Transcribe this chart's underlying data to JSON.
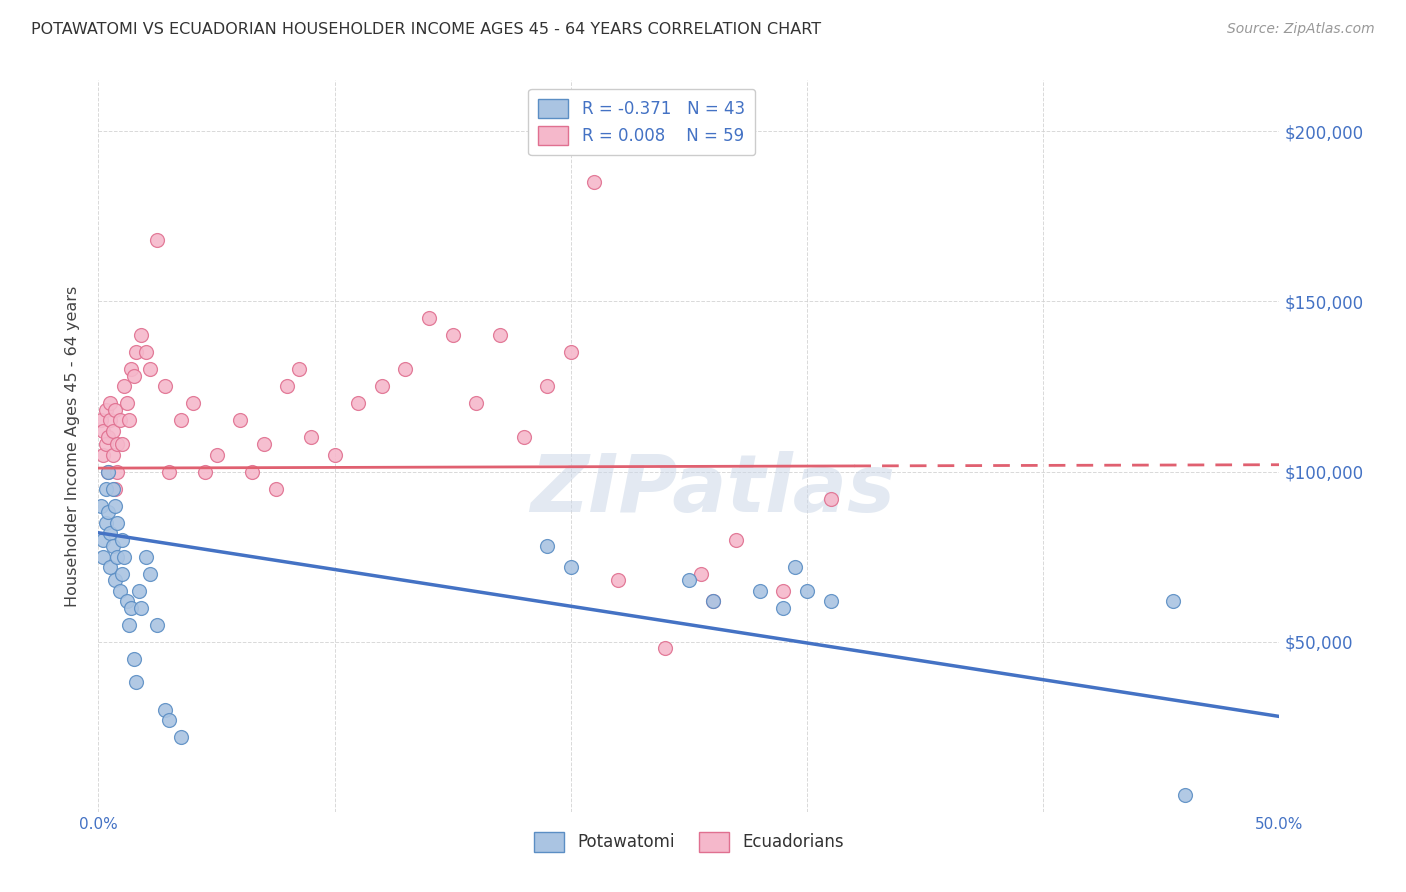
{
  "title": "POTAWATOMI VS ECUADORIAN HOUSEHOLDER INCOME AGES 45 - 64 YEARS CORRELATION CHART",
  "source": "Source: ZipAtlas.com",
  "ylabel": "Householder Income Ages 45 - 64 years",
  "watermark": "ZIPatlas",
  "blue_label": "Potawatomi",
  "pink_label": "Ecuadorians",
  "blue_R": -0.371,
  "blue_N": 43,
  "pink_R": 0.008,
  "pink_N": 59,
  "xmin": 0.0,
  "xmax": 0.5,
  "ymin": 0,
  "ymax": 215000,
  "yticks": [
    0,
    50000,
    100000,
    150000,
    200000
  ],
  "ytick_labels": [
    "",
    "$50,000",
    "$100,000",
    "$150,000",
    "$200,000"
  ],
  "xticks": [
    0.0,
    0.1,
    0.2,
    0.3,
    0.4,
    0.5
  ],
  "xtick_labels": [
    "0.0%",
    "",
    "",
    "",
    "",
    "50.0%"
  ],
  "blue_color": "#aac4e2",
  "blue_edge_color": "#5b8ec4",
  "blue_line_color": "#4472c4",
  "pink_color": "#f5b8cb",
  "pink_edge_color": "#e07090",
  "pink_line_color": "#e06070",
  "axis_color": "#4472c4",
  "grid_color": "#d0d0d0",
  "background_color": "#ffffff",
  "blue_scatter_x": [
    0.001,
    0.002,
    0.002,
    0.003,
    0.003,
    0.004,
    0.004,
    0.005,
    0.005,
    0.006,
    0.006,
    0.007,
    0.007,
    0.008,
    0.008,
    0.009,
    0.01,
    0.01,
    0.011,
    0.012,
    0.013,
    0.014,
    0.015,
    0.016,
    0.017,
    0.018,
    0.02,
    0.022,
    0.025,
    0.028,
    0.03,
    0.035,
    0.19,
    0.2,
    0.25,
    0.26,
    0.28,
    0.29,
    0.295,
    0.3,
    0.31,
    0.455,
    0.46
  ],
  "blue_scatter_y": [
    90000,
    75000,
    80000,
    95000,
    85000,
    100000,
    88000,
    82000,
    72000,
    95000,
    78000,
    90000,
    68000,
    85000,
    75000,
    65000,
    80000,
    70000,
    75000,
    62000,
    55000,
    60000,
    45000,
    38000,
    65000,
    60000,
    75000,
    70000,
    55000,
    30000,
    27000,
    22000,
    78000,
    72000,
    68000,
    62000,
    65000,
    60000,
    72000,
    65000,
    62000,
    62000,
    5000
  ],
  "pink_scatter_x": [
    0.001,
    0.002,
    0.002,
    0.003,
    0.003,
    0.004,
    0.004,
    0.005,
    0.005,
    0.006,
    0.006,
    0.007,
    0.007,
    0.008,
    0.008,
    0.009,
    0.01,
    0.011,
    0.012,
    0.013,
    0.014,
    0.015,
    0.016,
    0.018,
    0.02,
    0.022,
    0.025,
    0.028,
    0.03,
    0.035,
    0.04,
    0.045,
    0.05,
    0.06,
    0.065,
    0.07,
    0.075,
    0.08,
    0.085,
    0.09,
    0.1,
    0.11,
    0.12,
    0.13,
    0.14,
    0.15,
    0.16,
    0.17,
    0.18,
    0.19,
    0.2,
    0.21,
    0.22,
    0.24,
    0.255,
    0.26,
    0.27,
    0.29,
    0.31
  ],
  "pink_scatter_y": [
    115000,
    112000,
    105000,
    108000,
    118000,
    110000,
    100000,
    115000,
    120000,
    112000,
    105000,
    118000,
    95000,
    108000,
    100000,
    115000,
    108000,
    125000,
    120000,
    115000,
    130000,
    128000,
    135000,
    140000,
    135000,
    130000,
    168000,
    125000,
    100000,
    115000,
    120000,
    100000,
    105000,
    115000,
    100000,
    108000,
    95000,
    125000,
    130000,
    110000,
    105000,
    120000,
    125000,
    130000,
    145000,
    140000,
    120000,
    140000,
    110000,
    125000,
    135000,
    185000,
    68000,
    48000,
    70000,
    62000,
    80000,
    65000,
    92000
  ],
  "blue_trend_x0": 0.0,
  "blue_trend_x1": 0.5,
  "blue_trend_y0": 82000,
  "blue_trend_y1": 28000,
  "pink_trend_x0": 0.0,
  "pink_trend_x1": 0.5,
  "pink_trend_y0": 101000,
  "pink_trend_y1": 102000
}
